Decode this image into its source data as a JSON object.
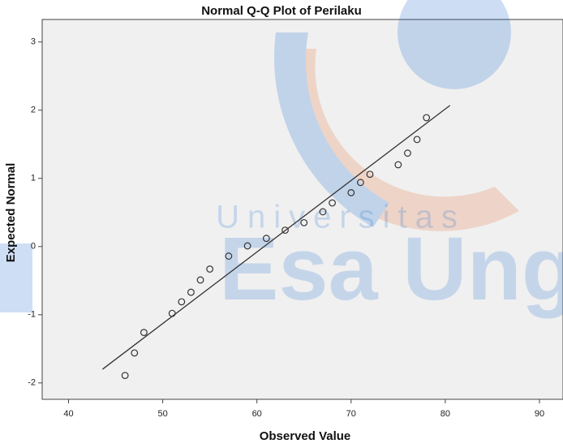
{
  "chart_data": {
    "type": "scatter",
    "title": "Normal Q-Q Plot of Perilaku",
    "xlabel": "Observed Value",
    "ylabel": "Expected Normal",
    "x": [
      46,
      47,
      48,
      51,
      52,
      53,
      54,
      55,
      57,
      59,
      61,
      63,
      65,
      67,
      68,
      70,
      71,
      72,
      75,
      76,
      77,
      78
    ],
    "values": [
      -1.89,
      -1.56,
      -1.26,
      -0.98,
      -0.81,
      -0.67,
      -0.49,
      -0.33,
      -0.14,
      0.01,
      0.12,
      0.24,
      0.35,
      0.51,
      0.64,
      0.79,
      0.94,
      1.06,
      1.2,
      1.37,
      1.57,
      1.89
    ],
    "color": "#333333",
    "reference_line": {
      "x": [
        43.6,
        80.5
      ],
      "y": [
        -1.8,
        2.07
      ]
    },
    "xlim": [
      37.2,
      92.5
    ],
    "xticks": [
      40,
      50,
      60,
      70,
      80,
      90
    ],
    "ylim": [
      -2.24,
      3.33
    ],
    "yticks": [
      -2,
      -1,
      0,
      1,
      2,
      3
    ],
    "watermark": [
      "Universitas",
      "Esa Ung"
    ]
  }
}
